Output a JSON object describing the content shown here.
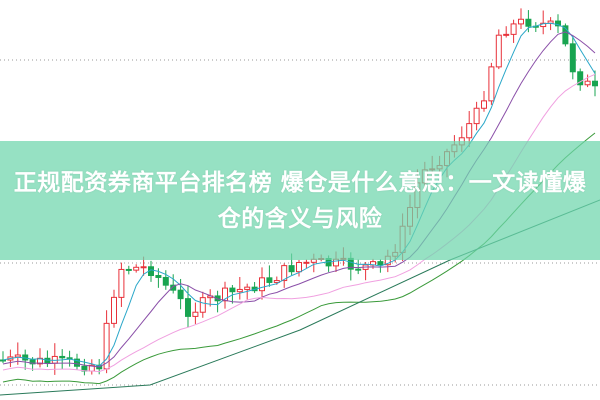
{
  "article": {
    "title": "正规配资券商平台排名榜 爆仓是什么意思：一文读懂爆仓的含义与风险"
  },
  "chart": {
    "type": "candlestick",
    "up_color": "#e8313a",
    "down_color": "#18a450",
    "ma_colors": [
      "#2aa7c9",
      "#8a4fa8",
      "#f0a0e0",
      "#3a9a3a"
    ],
    "grid": "dotted"
  }
}
